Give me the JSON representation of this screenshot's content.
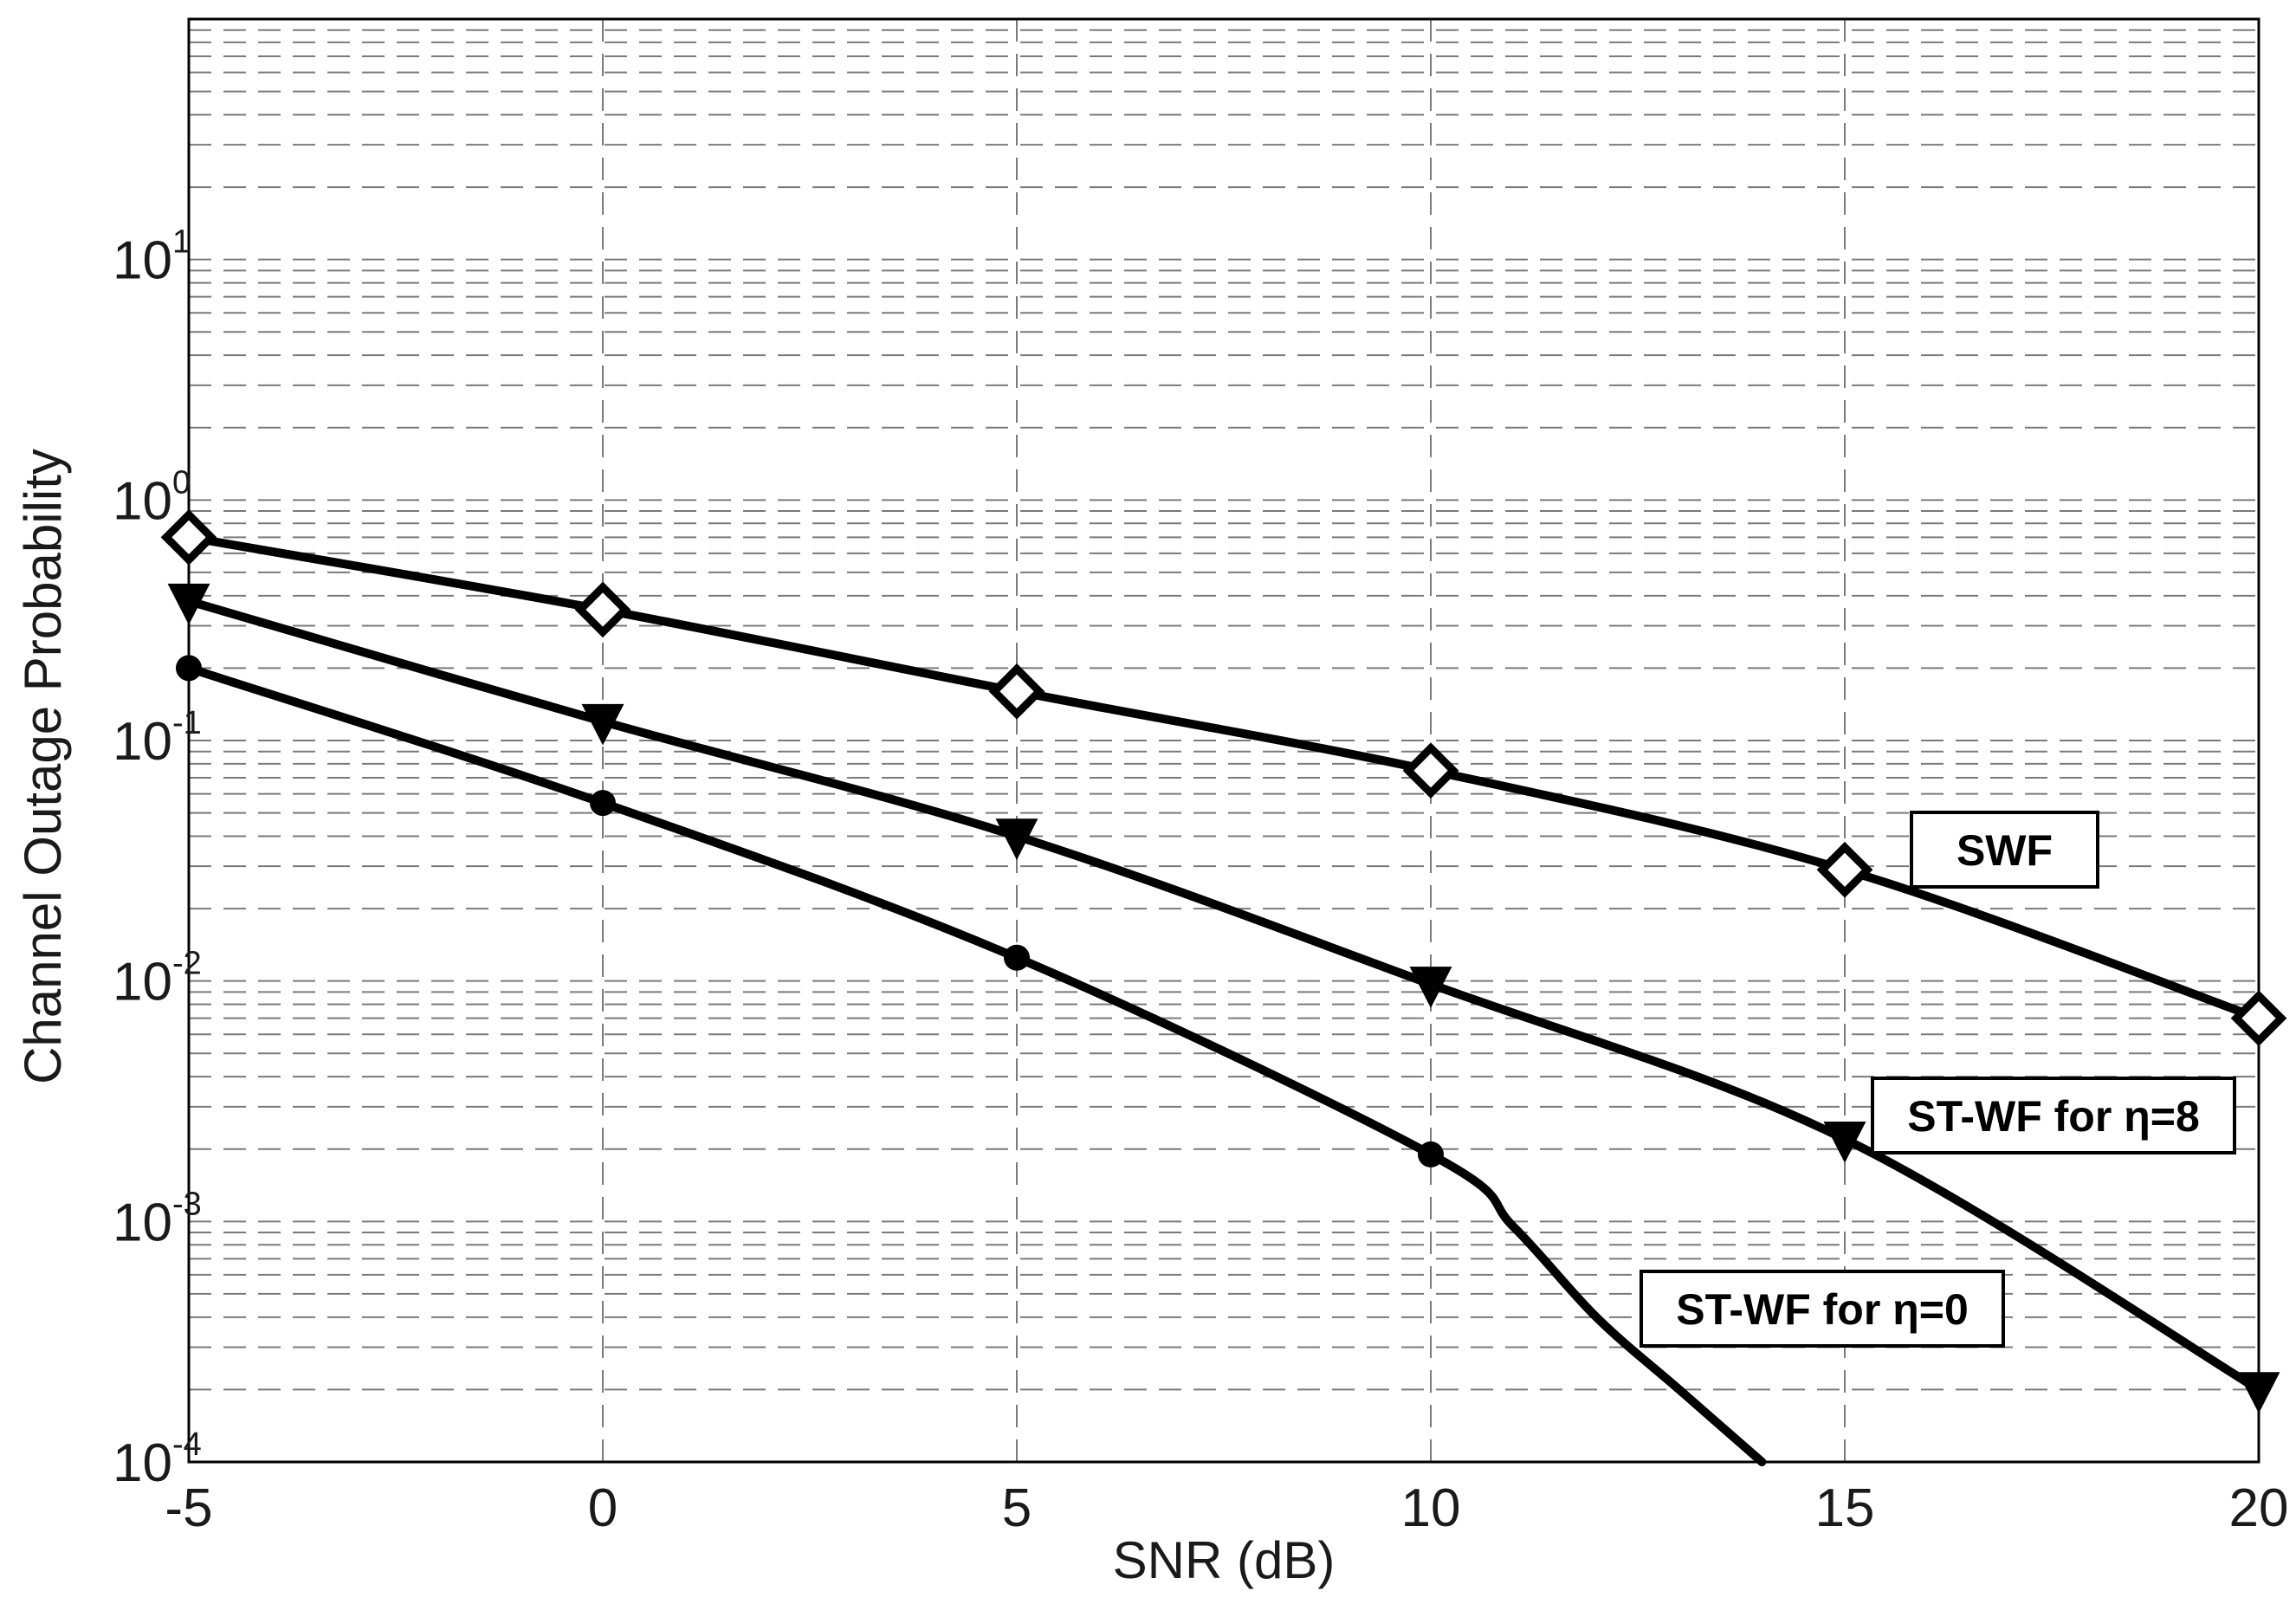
{
  "chart_data": {
    "type": "line",
    "xlabel": "SNR (dB)",
    "ylabel": "Channel Outage Probability",
    "yscale": "log",
    "xlim": [
      -5,
      20
    ],
    "ylim": [
      0.0001,
      100
    ],
    "grid": true,
    "x_ticks": [
      "-5",
      "0",
      "5",
      "10",
      "15",
      "20"
    ],
    "y_ticks": [
      {
        "base": "10",
        "exp": "-4"
      },
      {
        "base": "10",
        "exp": "-3"
      },
      {
        "base": "10",
        "exp": "-2"
      },
      {
        "base": "10",
        "exp": "-1"
      },
      {
        "base": "10",
        "exp": "0"
      },
      {
        "base": "10",
        "exp": "1"
      }
    ],
    "series": [
      {
        "name": "SWF",
        "marker": "diamond",
        "x": [
          -5,
          0,
          5,
          10,
          15,
          20
        ],
        "y": [
          0.7,
          0.35,
          0.16,
          0.075,
          0.029,
          0.007
        ]
      },
      {
        "name": "ST-WF for η=8",
        "marker": "triangle-down",
        "x": [
          -5,
          0,
          5,
          10,
          15,
          20
        ],
        "y": [
          0.38,
          0.12,
          0.04,
          0.0097,
          0.0022,
          0.0002
        ]
      },
      {
        "name": "ST-WF for η=0",
        "marker": "circle",
        "x": [
          -5,
          0,
          5,
          10,
          11,
          12,
          13,
          14
        ],
        "y": [
          0.2,
          0.055,
          0.0125,
          0.0019,
          0.00095,
          0.0004,
          0.0002,
          0.0001
        ]
      }
    ],
    "annotations": [
      {
        "text": "SWF",
        "series": 0
      },
      {
        "text": "ST-WF for η=8",
        "series": 1
      },
      {
        "text": "ST-WF for η=0",
        "series": 2
      }
    ],
    "colors": {
      "line": "#000000",
      "grid": "#7a7a7a",
      "frame": "#000000"
    }
  }
}
